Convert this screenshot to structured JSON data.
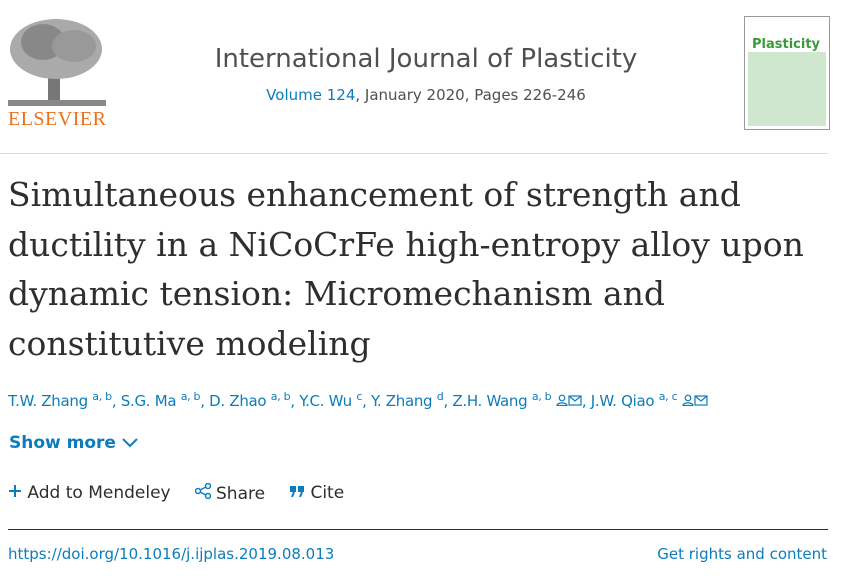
{
  "header": {
    "publisher": "ELSEVIER",
    "journal": "International Journal of Plasticity",
    "volume": "Volume 124",
    "issue_info": ", January 2020, Pages 226-246",
    "cover_title": "Plasticity"
  },
  "article": {
    "title": "Simultaneous enhancement of strength and ductility in a NiCoCrFe high-entropy alloy upon dynamic tension: Micromechanism and constitutive modeling",
    "authors": [
      {
        "name": "T.W. Zhang",
        "affiliations": "a, b",
        "separator": ","
      },
      {
        "name": "S.G. Ma",
        "affiliations": "a, b",
        "separator": ","
      },
      {
        "name": "D. Zhao",
        "affiliations": "a, b",
        "separator": ","
      },
      {
        "name": "Y.C. Wu",
        "affiliations": "c",
        "separator": ","
      },
      {
        "name": "Y. Zhang",
        "affiliations": "d",
        "separator": ","
      },
      {
        "name": "Z.H. Wang",
        "affiliations": "a, b",
        "corresponding": true,
        "separator": ","
      },
      {
        "name": "J.W. Qiao",
        "affiliations": "a, c",
        "corresponding": true
      }
    ],
    "show_more": "Show more",
    "actions": [
      "Add to Mendeley",
      "Share",
      "Cite"
    ],
    "doi": "https://doi.org/10.1016/j.ijplas.2019.08.013",
    "rights": "Get rights and content"
  }
}
